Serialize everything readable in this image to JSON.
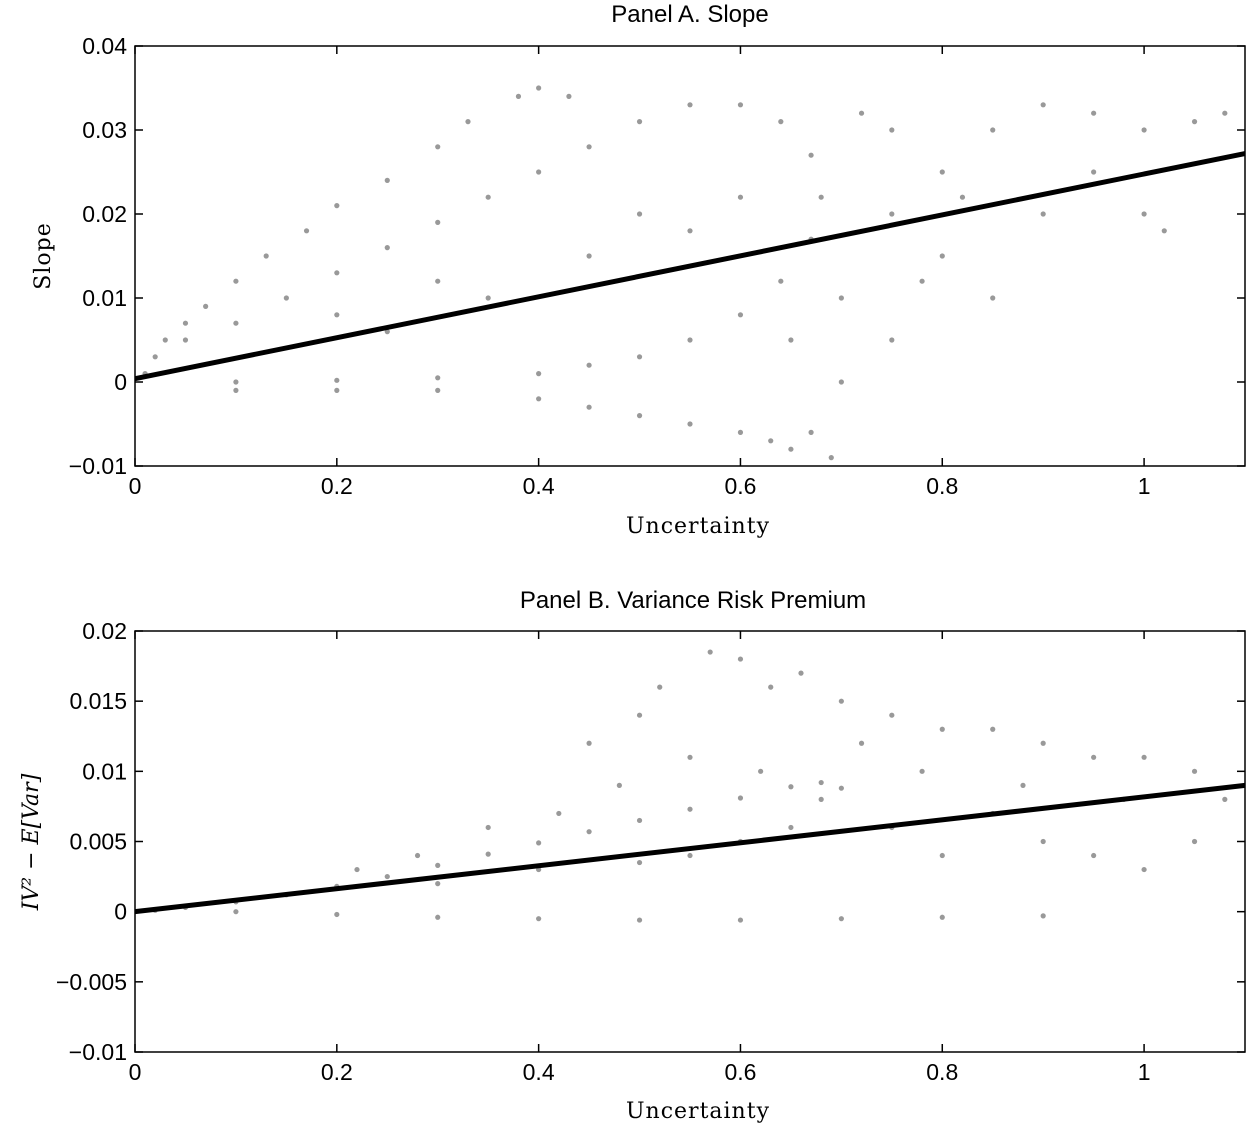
{
  "colors": {
    "scatter": "#999999",
    "fit_line": "#000000",
    "axes": "#000000"
  },
  "chart_data": [
    {
      "type": "scatter",
      "title": "Panel A.  Slope",
      "xlabel": "Uncertainty",
      "ylabel": "Slope",
      "xlim": [
        0,
        1.1
      ],
      "ylim": [
        -0.01,
        0.04
      ],
      "xticks": [
        0,
        0.2,
        0.4,
        0.6,
        0.8,
        1
      ],
      "xtick_labels": [
        "0",
        "0.2",
        "0.4",
        "0.6",
        "0.8",
        "1"
      ],
      "yticks": [
        -0.01,
        0,
        0.01,
        0.02,
        0.03,
        0.04
      ],
      "ytick_labels": [
        "−0.01",
        "0",
        "0.01",
        "0.02",
        "0.03",
        "0.04"
      ],
      "grid": false,
      "fit_line": {
        "x": [
          0,
          1.1
        ],
        "y": [
          0.0004,
          0.0272
        ]
      },
      "series": [
        {
          "points": [
            [
              0.01,
              0.001
            ],
            [
              0.02,
              0.003
            ],
            [
              0.03,
              0.005
            ],
            [
              0.05,
              0.007
            ],
            [
              0.07,
              0.009
            ],
            [
              0.1,
              0.012
            ],
            [
              0.13,
              0.015
            ],
            [
              0.17,
              0.018
            ],
            [
              0.2,
              0.021
            ],
            [
              0.25,
              0.024
            ],
            [
              0.3,
              0.028
            ],
            [
              0.33,
              0.031
            ],
            [
              0.38,
              0.034
            ],
            [
              0.4,
              0.035
            ],
            [
              0.43,
              0.034
            ],
            [
              0.05,
              0.005
            ],
            [
              0.1,
              0.007
            ],
            [
              0.15,
              0.01
            ],
            [
              0.2,
              0.013
            ],
            [
              0.25,
              0.016
            ],
            [
              0.3,
              0.019
            ],
            [
              0.35,
              0.022
            ],
            [
              0.4,
              0.025
            ],
            [
              0.45,
              0.028
            ],
            [
              0.5,
              0.031
            ],
            [
              0.55,
              0.033
            ],
            [
              0.6,
              0.033
            ],
            [
              0.64,
              0.031
            ],
            [
              0.67,
              0.027
            ],
            [
              0.68,
              0.022
            ],
            [
              0.67,
              0.017
            ],
            [
              0.64,
              0.012
            ],
            [
              0.6,
              0.008
            ],
            [
              0.55,
              0.005
            ],
            [
              0.5,
              0.003
            ],
            [
              0.45,
              0.002
            ],
            [
              0.4,
              0.001
            ],
            [
              0.3,
              0.0005
            ],
            [
              0.2,
              0.0002
            ],
            [
              0.1,
              0.0
            ],
            [
              0.1,
              -0.001
            ],
            [
              0.2,
              -0.001
            ],
            [
              0.3,
              -0.001
            ],
            [
              0.4,
              -0.002
            ],
            [
              0.45,
              -0.003
            ],
            [
              0.5,
              -0.004
            ],
            [
              0.55,
              -0.005
            ],
            [
              0.6,
              -0.006
            ],
            [
              0.63,
              -0.007
            ],
            [
              0.65,
              -0.008
            ],
            [
              0.67,
              -0.006
            ],
            [
              0.69,
              -0.009
            ],
            [
              0.2,
              0.008
            ],
            [
              0.25,
              0.006
            ],
            [
              0.3,
              0.012
            ],
            [
              0.35,
              0.01
            ],
            [
              0.45,
              0.015
            ],
            [
              0.5,
              0.02
            ],
            [
              0.55,
              0.018
            ],
            [
              0.6,
              0.022
            ],
            [
              0.65,
              0.005
            ],
            [
              0.7,
              0.01
            ],
            [
              0.75,
              0.02
            ],
            [
              0.8,
              0.025
            ],
            [
              0.85,
              0.03
            ],
            [
              0.9,
              0.033
            ],
            [
              0.95,
              0.032
            ],
            [
              1.0,
              0.03
            ],
            [
              1.05,
              0.031
            ],
            [
              1.08,
              0.032
            ],
            [
              0.75,
              0.03
            ],
            [
              0.72,
              0.032
            ],
            [
              0.8,
              0.015
            ],
            [
              0.85,
              0.01
            ],
            [
              0.9,
              0.02
            ],
            [
              0.95,
              0.025
            ],
            [
              1.0,
              0.02
            ],
            [
              1.02,
              0.018
            ],
            [
              0.7,
              0.0
            ],
            [
              0.75,
              0.005
            ],
            [
              0.78,
              0.012
            ],
            [
              0.82,
              0.022
            ]
          ]
        }
      ]
    },
    {
      "type": "scatter",
      "title": "Panel B.  Variance Risk Premium",
      "xlabel": "Uncertainty",
      "ylabel": "IV² − E[Var]",
      "xlim": [
        0,
        1.1
      ],
      "ylim": [
        -0.01,
        0.02
      ],
      "xticks": [
        0,
        0.2,
        0.4,
        0.6,
        0.8,
        1
      ],
      "xtick_labels": [
        "0",
        "0.2",
        "0.4",
        "0.6",
        "0.8",
        "1"
      ],
      "yticks": [
        -0.01,
        -0.005,
        0,
        0.005,
        0.01,
        0.015,
        0.02
      ],
      "ytick_labels": [
        "−0.01",
        "−0.005",
        "0",
        "0.005",
        "0.01",
        "0.015",
        "0.02"
      ],
      "grid": false,
      "fit_line": {
        "x": [
          0,
          1.1
        ],
        "y": [
          0.0,
          0.009
        ]
      },
      "series": [
        {
          "points": [
            [
              0.02,
              0.0001
            ],
            [
              0.05,
              0.0003
            ],
            [
              0.1,
              0.0007
            ],
            [
              0.15,
              0.0012
            ],
            [
              0.2,
              0.0018
            ],
            [
              0.25,
              0.0025
            ],
            [
              0.3,
              0.0033
            ],
            [
              0.35,
              0.0041
            ],
            [
              0.4,
              0.0049
            ],
            [
              0.45,
              0.0057
            ],
            [
              0.5,
              0.0065
            ],
            [
              0.55,
              0.0073
            ],
            [
              0.6,
              0.0081
            ],
            [
              0.65,
              0.0089
            ],
            [
              0.68,
              0.0092
            ],
            [
              0.7,
              0.0088
            ],
            [
              0.1,
              0.0
            ],
            [
              0.2,
              -0.0002
            ],
            [
              0.3,
              -0.0004
            ],
            [
              0.4,
              -0.0005
            ],
            [
              0.5,
              -0.0006
            ],
            [
              0.6,
              -0.0006
            ],
            [
              0.7,
              -0.0005
            ],
            [
              0.8,
              -0.0004
            ],
            [
              0.9,
              -0.0003
            ],
            [
              0.3,
              0.002
            ],
            [
              0.4,
              0.003
            ],
            [
              0.5,
              0.0035
            ],
            [
              0.55,
              0.004
            ],
            [
              0.6,
              0.005
            ],
            [
              0.65,
              0.006
            ],
            [
              0.68,
              0.008
            ],
            [
              0.45,
              0.012
            ],
            [
              0.5,
              0.014
            ],
            [
              0.52,
              0.016
            ],
            [
              0.57,
              0.0185
            ],
            [
              0.6,
              0.018
            ],
            [
              0.63,
              0.016
            ],
            [
              0.66,
              0.017
            ],
            [
              0.7,
              0.015
            ],
            [
              0.75,
              0.014
            ],
            [
              0.8,
              0.013
            ],
            [
              0.85,
              0.013
            ],
            [
              0.9,
              0.012
            ],
            [
              0.95,
              0.011
            ],
            [
              1.0,
              0.011
            ],
            [
              1.05,
              0.01
            ],
            [
              1.08,
              0.008
            ],
            [
              0.75,
              0.006
            ],
            [
              0.8,
              0.004
            ],
            [
              0.85,
              0.007
            ],
            [
              0.9,
              0.005
            ],
            [
              0.95,
              0.004
            ],
            [
              1.0,
              0.003
            ],
            [
              1.05,
              0.005
            ],
            [
              0.78,
              0.01
            ],
            [
              0.88,
              0.009
            ],
            [
              0.98,
              0.008
            ],
            [
              0.72,
              0.012
            ],
            [
              0.62,
              0.01
            ],
            [
              0.55,
              0.011
            ],
            [
              0.48,
              0.009
            ],
            [
              0.42,
              0.007
            ],
            [
              0.35,
              0.006
            ],
            [
              0.28,
              0.004
            ],
            [
              0.22,
              0.003
            ]
          ]
        }
      ]
    }
  ]
}
